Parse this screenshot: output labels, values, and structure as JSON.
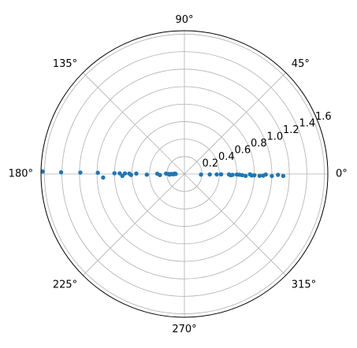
{
  "chart_data": {
    "type": "scatter",
    "projection": "polar",
    "title": "",
    "rlim": [
      0,
      1.64
    ],
    "r_ticks": [
      0.2,
      0.4,
      0.6,
      0.8,
      1.0,
      1.2,
      1.4,
      1.6
    ],
    "r_tick_labels": [
      "0.2",
      "0.4",
      "0.6",
      "0.8",
      "1.0",
      "1.2",
      "1.4",
      "1.6"
    ],
    "r_label_angle_deg": 22.5,
    "theta_ticks_deg": [
      0,
      45,
      90,
      135,
      180,
      225,
      270,
      315
    ],
    "theta_tick_labels": [
      "0°",
      "45°",
      "90°",
      "135°",
      "180°",
      "225°",
      "270°",
      "315°"
    ],
    "grid": true,
    "marker_color": "#1f77b4",
    "grid_color": "#b0b0b0",
    "series": [
      {
        "theta_deg": [
          180,
          180,
          180,
          180,
          180,
          180,
          180,
          180,
          180,
          180,
          180,
          180,
          180,
          180,
          180,
          180,
          180,
          180,
          180,
          180,
          180,
          180,
          180,
          0,
          0,
          0,
          0,
          0,
          0,
          0,
          0,
          0,
          0,
          0,
          0,
          0,
          0,
          0,
          0,
          0,
          0,
          0,
          0
        ],
        "r": [
          1.62,
          1.41,
          1.19,
          0.99,
          0.93,
          0.8,
          0.74,
          0.71,
          0.68,
          0.63,
          0.61,
          0.55,
          0.43,
          0.31,
          0.28,
          0.21,
          0.18,
          0.17,
          0.15,
          0.13,
          0.12,
          0.11,
          0.1,
          0.19,
          0.29,
          0.37,
          0.42,
          0.51,
          0.53,
          0.55,
          0.6,
          0.63,
          0.66,
          0.7,
          0.75,
          0.77,
          0.8,
          0.86,
          0.9,
          0.93,
          1.0,
          1.07,
          1.13
        ],
        "theta_offset_deg": [
          -1.0,
          -0.8,
          -0.8,
          -0.8,
          2.5,
          -0.6,
          -0.6,
          1.8,
          -0.5,
          -0.4,
          1.0,
          -0.5,
          1.0,
          -0.6,
          2.5,
          -1.4,
          0.0,
          2.5,
          0.0,
          1.5,
          0.0,
          -2.5,
          0.0,
          -2.0,
          -1.0,
          -0.8,
          -0.5,
          -0.6,
          -1.5,
          -1.0,
          -0.6,
          -0.8,
          -1.1,
          -1.8,
          -0.3,
          -1.3,
          -1.0,
          -1.4,
          -1.2,
          -0.4,
          -1.3,
          -0.5,
          -1.1
        ]
      }
    ]
  }
}
